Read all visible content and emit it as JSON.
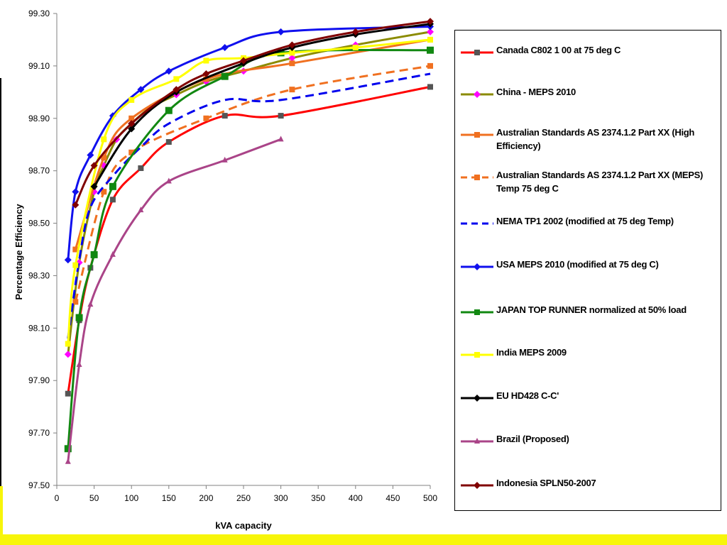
{
  "chart_data": {
    "type": "line",
    "xlabel": "kVA capacity",
    "ylabel": "Percentage Efficiency",
    "xlim": [
      0,
      500
    ],
    "ylim": [
      97.5,
      99.3
    ],
    "x_ticks": [
      "0",
      "50",
      "100",
      "150",
      "200",
      "250",
      "300",
      "350",
      "400",
      "450",
      "500"
    ],
    "y_ticks": [
      "97.50",
      "97.70",
      "97.90",
      "98.10",
      "98.30",
      "98.50",
      "98.70",
      "98.90",
      "99.10",
      "99.30"
    ],
    "grid": false,
    "legend_position": "right",
    "series": [
      {
        "name": "Canada C802 1 00 at 75 deg C",
        "color": "#ff0000",
        "marker": "square",
        "marker_color": "#555555",
        "dashed": false,
        "x": [
          15,
          30,
          45,
          75,
          112.5,
          150,
          225,
          300,
          500
        ],
        "y": [
          97.85,
          98.13,
          98.33,
          98.59,
          98.71,
          98.81,
          98.91,
          98.91,
          99.02
        ]
      },
      {
        "name": "China - MEPS 2010",
        "color": "#8b8b00",
        "marker": "diamond",
        "marker_color": "#ff00ff",
        "dashed": false,
        "x": [
          15,
          30,
          50,
          63,
          80,
          100,
          125,
          160,
          200,
          250,
          315,
          400,
          500
        ],
        "y": [
          98.0,
          98.35,
          98.62,
          98.72,
          98.82,
          98.88,
          98.94,
          98.99,
          99.04,
          99.08,
          99.13,
          99.18,
          99.23
        ]
      },
      {
        "name": "Australian Standards AS 2374.1.2 Part XX (High Efficiency)",
        "color": "#f07020",
        "marker": "square",
        "marker_color": "#f07020",
        "dashed": false,
        "x": [
          25,
          63,
          100,
          200,
          315,
          500
        ],
        "y": [
          98.4,
          98.75,
          98.9,
          99.05,
          99.11,
          99.2
        ]
      },
      {
        "name": "Australian Standards AS 2374.1.2 Part XX (MEPS) Temp 75 deg C",
        "color": "#f07020",
        "marker": "square",
        "marker_color": "#f07020",
        "dashed": true,
        "x": [
          25,
          63,
          100,
          200,
          315,
          500
        ],
        "y": [
          98.2,
          98.62,
          98.77,
          98.9,
          99.01,
          99.1
        ]
      },
      {
        "name": "NEMA TP1 2002 (modified at 75 deg Temp)",
        "color": "#0000ee",
        "marker": "none",
        "marker_color": "#0000ee",
        "dashed": true,
        "x": [
          15,
          30,
          45,
          75,
          112.5,
          150,
          225,
          300,
          500
        ],
        "y": [
          98.06,
          98.36,
          98.56,
          98.68,
          98.79,
          98.88,
          98.97,
          98.97,
          99.07
        ]
      },
      {
        "name": "USA MEPS 2010 (modified at 75 deg C)",
        "color": "#1010ee",
        "marker": "diamond",
        "marker_color": "#1010ee",
        "dashed": false,
        "x": [
          15,
          25,
          45,
          75,
          112.5,
          150,
          225,
          300,
          500
        ],
        "y": [
          98.36,
          98.62,
          98.76,
          98.91,
          99.01,
          99.08,
          99.17,
          99.23,
          99.25
        ]
      },
      {
        "name": "JAPAN TOP RUNNER normalized at 50% load",
        "color": "#118811",
        "marker": "square",
        "marker_color": "#118811",
        "dashed": false,
        "x": [
          15,
          30,
          50,
          75,
          150,
          225,
          300,
          500
        ],
        "y": [
          97.64,
          98.14,
          98.38,
          98.64,
          98.93,
          99.06,
          99.15,
          99.16
        ]
      },
      {
        "name": "India MEPS 2009",
        "color": "#ffff00",
        "marker": "square",
        "marker_color": "#ffff00",
        "dashed": false,
        "x": [
          15,
          25,
          63,
          100,
          160,
          200,
          250,
          315,
          400,
          500
        ],
        "y": [
          98.04,
          98.34,
          98.82,
          98.97,
          99.05,
          99.12,
          99.13,
          99.15,
          99.17,
          99.2
        ]
      },
      {
        "name": "EU HD428 C-C'",
        "color": "#000000",
        "marker": "diamond",
        "marker_color": "#000000",
        "dashed": false,
        "x": [
          50,
          100,
          160,
          250,
          315,
          400,
          500
        ],
        "y": [
          98.64,
          98.86,
          99.0,
          99.11,
          99.17,
          99.22,
          99.26
        ]
      },
      {
        "name": "Brazil (Proposed)",
        "color": "#aa4488",
        "marker": "triangle",
        "marker_color": "#aa4488",
        "dashed": false,
        "x": [
          15,
          30,
          45,
          75,
          112.5,
          150,
          225,
          300
        ],
        "y": [
          97.59,
          97.96,
          98.19,
          98.38,
          98.55,
          98.66,
          98.74,
          98.82
        ]
      },
      {
        "name": "Indonesia SPLN50-2007",
        "color": "#800000",
        "marker": "diamond",
        "marker_color": "#800000",
        "dashed": false,
        "x": [
          25,
          50,
          100,
          160,
          200,
          250,
          315,
          400,
          500
        ],
        "y": [
          98.57,
          98.72,
          98.88,
          99.01,
          99.07,
          99.12,
          99.18,
          99.23,
          99.27
        ]
      }
    ]
  }
}
